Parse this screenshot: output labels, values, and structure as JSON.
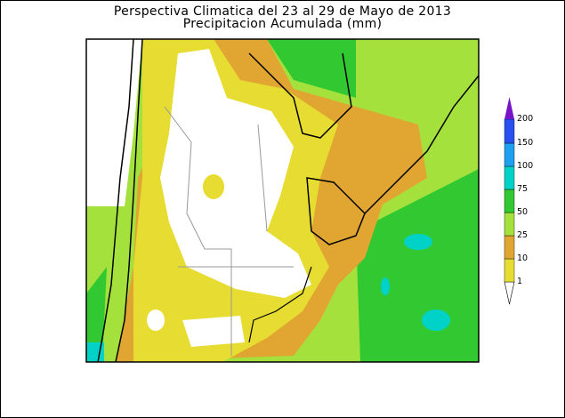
{
  "title": "Perspectiva Climatica del 23 al 29 de Mayo de 2013",
  "subtitle": "Precipitacion Acumulada (mm)",
  "legend": {
    "levels": [
      "1",
      "10",
      "25",
      "50",
      "75",
      "100",
      "150",
      "200"
    ],
    "colors": [
      "#ffffff",
      "#e6dc32",
      "#e1a532",
      "#a5e13c",
      "#32c832",
      "#00d2c8",
      "#1ea0f0",
      "#2850f0",
      "#7814c8"
    ]
  }
}
